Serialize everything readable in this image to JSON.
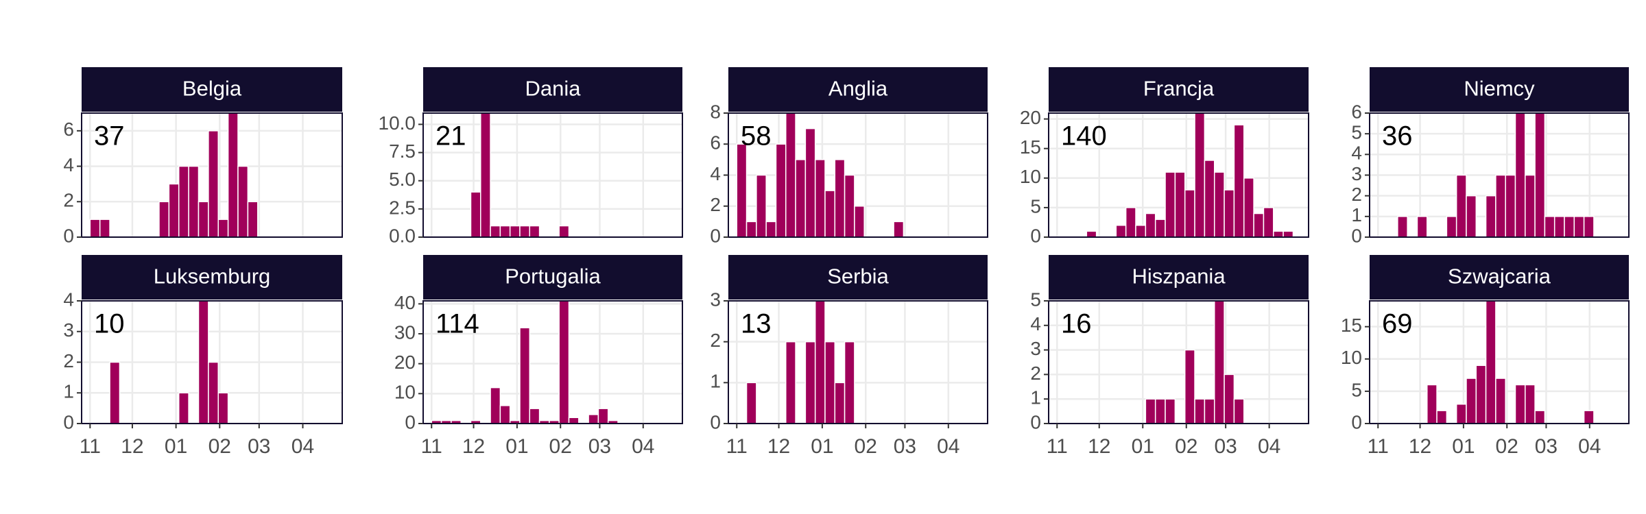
{
  "chart_data": [
    {
      "type": "histogram",
      "title": "Belgia",
      "total": 37,
      "color": "#a0005a",
      "xlim": [
        -6,
        179
      ],
      "xticks": [
        0,
        30,
        61,
        92,
        120,
        151
      ],
      "ylim": [
        0,
        7
      ],
      "yticks": [
        0,
        2,
        4,
        6
      ],
      "grid": true,
      "bins": [
        0,
        7,
        14,
        21,
        28,
        35,
        42,
        49,
        56,
        63,
        70,
        77,
        84,
        91,
        98,
        105,
        112,
        119,
        126,
        133,
        140,
        147,
        154,
        161,
        168,
        175
      ],
      "counts": [
        1,
        1,
        0,
        0,
        0,
        0,
        0,
        2,
        3,
        4,
        4,
        2,
        6,
        1,
        7,
        4,
        2,
        0,
        0,
        0,
        0,
        0,
        0,
        0,
        0
      ]
    },
    {
      "type": "histogram",
      "title": "Dania",
      "total": 21,
      "color": "#a0005a",
      "xlim": [
        -6,
        179
      ],
      "xticks": [
        0,
        30,
        61,
        92,
        120,
        151
      ],
      "ylim": [
        0,
        11
      ],
      "yticks": [
        {
          "value": 0,
          "label": "0.0"
        },
        {
          "value": 2.5,
          "label": "2.5"
        },
        {
          "value": 5,
          "label": "5.0"
        },
        {
          "value": 7.5,
          "label": "7.5"
        },
        {
          "value": 10,
          "label": "10.0"
        }
      ],
      "grid": true,
      "bins": [
        0,
        7,
        14,
        21,
        28,
        35,
        42,
        49,
        56,
        63,
        70,
        77,
        84,
        91,
        98,
        105,
        112,
        119,
        126,
        133,
        140,
        147,
        154,
        161,
        168,
        175
      ],
      "counts": [
        0,
        0,
        0,
        0,
        4,
        11,
        1,
        1,
        1,
        1,
        1,
        0,
        0,
        1,
        0,
        0,
        0,
        0,
        0,
        0,
        0,
        0,
        0,
        0,
        0
      ]
    },
    {
      "type": "histogram",
      "title": "Anglia",
      "total": 58,
      "color": "#a0005a",
      "xlim": [
        -6,
        179
      ],
      "xticks": [
        0,
        30,
        61,
        92,
        120,
        151
      ],
      "ylim": [
        0,
        8
      ],
      "yticks": [
        0,
        2,
        4,
        6,
        8
      ],
      "grid": true,
      "bins": [
        0,
        7,
        14,
        21,
        28,
        35,
        42,
        49,
        56,
        63,
        70,
        77,
        84,
        91,
        98,
        105,
        112,
        119,
        126,
        133,
        140,
        147,
        154,
        161,
        168,
        175
      ],
      "counts": [
        6,
        1,
        4,
        1,
        6,
        8,
        5,
        7,
        5,
        3,
        5,
        4,
        2,
        0,
        0,
        0,
        1,
        0,
        0,
        0,
        0,
        0,
        0,
        0,
        0
      ]
    },
    {
      "type": "histogram",
      "title": "Francja",
      "total": 140,
      "color": "#a0005a",
      "xlim": [
        -6,
        179
      ],
      "xticks": [
        0,
        30,
        61,
        92,
        120,
        151
      ],
      "ylim": [
        0,
        21
      ],
      "yticks": [
        0,
        5,
        10,
        15,
        20
      ],
      "grid": true,
      "bins": [
        0,
        7,
        14,
        21,
        28,
        35,
        42,
        49,
        56,
        63,
        70,
        77,
        84,
        91,
        98,
        105,
        112,
        119,
        126,
        133,
        140,
        147,
        154,
        161,
        168,
        175
      ],
      "counts": [
        0,
        0,
        0,
        1,
        0,
        0,
        2,
        5,
        2,
        4,
        3,
        11,
        11,
        8,
        21,
        13,
        11,
        8,
        19,
        10,
        4,
        5,
        1,
        1,
        0
      ]
    },
    {
      "type": "histogram",
      "title": "Niemcy",
      "total": 36,
      "color": "#a0005a",
      "xlim": [
        -6,
        179
      ],
      "xticks": [
        0,
        30,
        61,
        92,
        120,
        151
      ],
      "ylim": [
        0,
        6
      ],
      "yticks": [
        0,
        1,
        2,
        3,
        4,
        5,
        6
      ],
      "grid": true,
      "bins": [
        0,
        7,
        14,
        21,
        28,
        35,
        42,
        49,
        56,
        63,
        70,
        77,
        84,
        91,
        98,
        105,
        112,
        119,
        126,
        133,
        140,
        147,
        154,
        161,
        168,
        175
      ],
      "counts": [
        0,
        0,
        1,
        0,
        1,
        0,
        0,
        1,
        3,
        2,
        0,
        2,
        3,
        3,
        6,
        3,
        6,
        1,
        1,
        1,
        1,
        1,
        0,
        0,
        0
      ]
    },
    {
      "type": "histogram",
      "title": "Luksemburg",
      "total": 10,
      "color": "#a0005a",
      "xlim": [
        -6,
        179
      ],
      "xticks": [
        {
          "value": 0,
          "label": "11"
        },
        {
          "value": 30,
          "label": "12"
        },
        {
          "value": 61,
          "label": "01"
        },
        {
          "value": 92,
          "label": "02"
        },
        {
          "value": 120,
          "label": "03"
        },
        {
          "value": 151,
          "label": "04"
        }
      ],
      "ylim": [
        0,
        4
      ],
      "yticks": [
        0,
        1,
        2,
        3,
        4
      ],
      "grid": true,
      "bins": [
        0,
        7,
        14,
        21,
        28,
        35,
        42,
        49,
        56,
        63,
        70,
        77,
        84,
        91,
        98,
        105,
        112,
        119,
        126,
        133,
        140,
        147,
        154,
        161,
        168,
        175
      ],
      "counts": [
        0,
        0,
        2,
        0,
        0,
        0,
        0,
        0,
        0,
        1,
        0,
        4,
        2,
        1,
        0,
        0,
        0,
        0,
        0,
        0,
        0,
        0,
        0,
        0,
        0
      ]
    },
    {
      "type": "histogram",
      "title": "Portugalia",
      "total": 114,
      "color": "#a0005a",
      "xlim": [
        -6,
        179
      ],
      "xticks": [
        {
          "value": 0,
          "label": "11"
        },
        {
          "value": 30,
          "label": "12"
        },
        {
          "value": 61,
          "label": "01"
        },
        {
          "value": 92,
          "label": "02"
        },
        {
          "value": 120,
          "label": "03"
        },
        {
          "value": 151,
          "label": "04"
        }
      ],
      "ylim": [
        0,
        41
      ],
      "yticks": [
        0,
        10,
        20,
        30,
        40
      ],
      "grid": true,
      "bins": [
        0,
        7,
        14,
        21,
        28,
        35,
        42,
        49,
        56,
        63,
        70,
        77,
        84,
        91,
        98,
        105,
        112,
        119,
        126,
        133,
        140,
        147,
        154,
        161,
        168,
        175
      ],
      "counts": [
        1,
        1,
        1,
        0,
        1,
        0,
        12,
        6,
        1,
        32,
        5,
        1,
        1,
        41,
        2,
        0,
        3,
        5,
        1,
        0,
        0,
        0,
        0,
        0,
        0
      ]
    },
    {
      "type": "histogram",
      "title": "Serbia",
      "total": 13,
      "color": "#a0005a",
      "xlim": [
        -6,
        179
      ],
      "xticks": [
        {
          "value": 0,
          "label": "11"
        },
        {
          "value": 30,
          "label": "12"
        },
        {
          "value": 61,
          "label": "01"
        },
        {
          "value": 92,
          "label": "02"
        },
        {
          "value": 120,
          "label": "03"
        },
        {
          "value": 151,
          "label": "04"
        }
      ],
      "ylim": [
        0,
        3
      ],
      "yticks": [
        0,
        1,
        2,
        3
      ],
      "grid": true,
      "bins": [
        0,
        7,
        14,
        21,
        28,
        35,
        42,
        49,
        56,
        63,
        70,
        77,
        84,
        91,
        98,
        105,
        112,
        119,
        126,
        133,
        140,
        147,
        154,
        161,
        168,
        175
      ],
      "counts": [
        0,
        1,
        0,
        0,
        0,
        2,
        0,
        2,
        3,
        2,
        1,
        2,
        0,
        0,
        0,
        0,
        0,
        0,
        0,
        0,
        0,
        0,
        0,
        0,
        0
      ]
    },
    {
      "type": "histogram",
      "title": "Hiszpania",
      "total": 16,
      "color": "#a0005a",
      "xlim": [
        -6,
        179
      ],
      "xticks": [
        {
          "value": 0,
          "label": "11"
        },
        {
          "value": 30,
          "label": "12"
        },
        {
          "value": 61,
          "label": "01"
        },
        {
          "value": 92,
          "label": "02"
        },
        {
          "value": 120,
          "label": "03"
        },
        {
          "value": 151,
          "label": "04"
        }
      ],
      "ylim": [
        0,
        5
      ],
      "yticks": [
        0,
        1,
        2,
        3,
        4,
        5
      ],
      "grid": true,
      "bins": [
        0,
        7,
        14,
        21,
        28,
        35,
        42,
        49,
        56,
        63,
        70,
        77,
        84,
        91,
        98,
        105,
        112,
        119,
        126,
        133,
        140,
        147,
        154,
        161,
        168,
        175
      ],
      "counts": [
        0,
        0,
        0,
        0,
        0,
        0,
        0,
        0,
        0,
        1,
        1,
        1,
        0,
        3,
        1,
        1,
        5,
        2,
        1,
        0,
        0,
        0,
        0,
        0,
        0
      ]
    },
    {
      "type": "histogram",
      "title": "Szwajcaria",
      "total": 69,
      "color": "#a0005a",
      "xlim": [
        -6,
        179
      ],
      "xticks": [
        {
          "value": 0,
          "label": "11"
        },
        {
          "value": 30,
          "label": "12"
        },
        {
          "value": 61,
          "label": "01"
        },
        {
          "value": 92,
          "label": "02"
        },
        {
          "value": 120,
          "label": "03"
        },
        {
          "value": 151,
          "label": "04"
        }
      ],
      "ylim": [
        0,
        19
      ],
      "yticks": [
        0,
        5,
        10,
        15
      ],
      "grid": true,
      "bins": [
        0,
        7,
        14,
        21,
        28,
        35,
        42,
        49,
        56,
        63,
        70,
        77,
        84,
        91,
        98,
        105,
        112,
        119,
        126,
        133,
        140,
        147,
        154,
        161,
        168,
        175
      ],
      "counts": [
        0,
        0,
        0,
        0,
        0,
        6,
        2,
        0,
        3,
        7,
        9,
        19,
        7,
        0,
        6,
        6,
        2,
        0,
        0,
        0,
        0,
        2,
        0,
        0,
        0
      ]
    }
  ]
}
